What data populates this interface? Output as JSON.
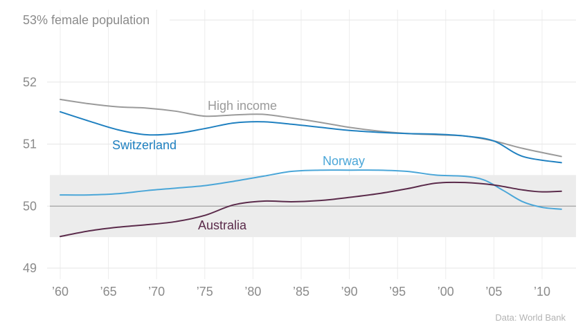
{
  "chart_data": {
    "type": "line",
    "title": "",
    "xlabel": "",
    "ylabel": "",
    "ylim": [
      49,
      53
    ],
    "xlim": [
      1960,
      2012
    ],
    "x_tick_labels": [
      "’60",
      "’65",
      "’70",
      "’75",
      "’80",
      "’85",
      "’90",
      "’95",
      "’00",
      "’05",
      "’10"
    ],
    "x_tick_values": [
      1960,
      1965,
      1970,
      1975,
      1980,
      1985,
      1990,
      1995,
      2000,
      2005,
      2010
    ],
    "y_tick_values": [
      49,
      50,
      51,
      52,
      53
    ],
    "y_tick_labels": [
      "49",
      "50",
      "51",
      "52",
      "53% female population"
    ],
    "grid": true,
    "band": [
      49.5,
      50.5
    ],
    "reference_line": 50,
    "series": [
      {
        "name": "High income",
        "color": "#9a9a9a",
        "x": [
          1960,
          1963,
          1966,
          1969,
          1972,
          1975,
          1978,
          1981,
          1984,
          1987,
          1990,
          1993,
          1996,
          1999,
          2002,
          2005,
          2008,
          2012
        ],
        "y": [
          51.72,
          51.65,
          51.6,
          51.58,
          51.53,
          51.45,
          51.47,
          51.48,
          51.42,
          51.35,
          51.27,
          51.21,
          51.17,
          51.15,
          51.13,
          51.05,
          50.93,
          50.8
        ]
      },
      {
        "name": "Switzerland",
        "color": "#1f80c0",
        "x": [
          1960,
          1963,
          1966,
          1969,
          1972,
          1975,
          1978,
          1981,
          1984,
          1987,
          1990,
          1993,
          1996,
          1999,
          2002,
          2005,
          2008,
          2012
        ],
        "y": [
          51.52,
          51.37,
          51.23,
          51.15,
          51.17,
          51.25,
          51.34,
          51.36,
          51.32,
          51.27,
          51.22,
          51.19,
          51.17,
          51.16,
          51.13,
          51.05,
          50.8,
          50.7
        ]
      },
      {
        "name": "Norway",
        "color": "#4aa6d8",
        "x": [
          1960,
          1963,
          1966,
          1969,
          1972,
          1975,
          1978,
          1981,
          1984,
          1987,
          1990,
          1993,
          1996,
          1999,
          2002,
          2004,
          2006,
          2008,
          2010,
          2012
        ],
        "y": [
          50.18,
          50.18,
          50.2,
          50.25,
          50.29,
          50.33,
          50.4,
          50.48,
          50.56,
          50.58,
          50.58,
          50.58,
          50.56,
          50.5,
          50.48,
          50.42,
          50.25,
          50.07,
          49.98,
          49.95
        ]
      },
      {
        "name": "Australia",
        "color": "#5a2a4a",
        "x": [
          1960,
          1963,
          1966,
          1969,
          1972,
          1975,
          1978,
          1981,
          1984,
          1987,
          1990,
          1993,
          1996,
          1999,
          2002,
          2005,
          2008,
          2010,
          2012
        ],
        "y": [
          49.51,
          49.6,
          49.66,
          49.7,
          49.75,
          49.85,
          50.02,
          50.08,
          50.07,
          50.09,
          50.14,
          50.2,
          50.28,
          50.37,
          50.38,
          50.34,
          50.26,
          50.23,
          50.24
        ]
      }
    ],
    "source": "Data: World Bank"
  }
}
